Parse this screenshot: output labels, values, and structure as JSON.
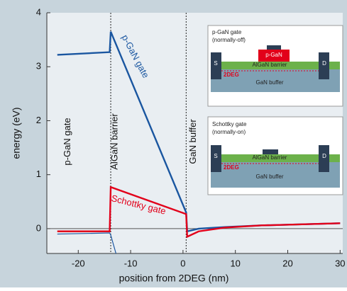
{
  "chart_data": {
    "type": "line",
    "xlabel": "position from 2DEG (nm)",
    "ylabel": "energy (eV)",
    "xlim": [
      -26,
      30.5
    ],
    "ylim": [
      -0.46,
      4
    ],
    "xticks": [
      -20,
      -10,
      0,
      10,
      20,
      30
    ],
    "yticks": [
      0,
      1,
      2,
      3,
      4
    ],
    "regions": [
      {
        "label": "p-GaN gate",
        "x": -22
      },
      {
        "label": "AlGaN barrier",
        "x": -13
      },
      {
        "label": "GaN buffer",
        "x": 2
      }
    ],
    "boundaries": [
      -13.8,
      0.6
    ],
    "series": [
      {
        "name": "p-GaN gate",
        "color": "#1a56a0",
        "x": [
          -24,
          -14,
          -13.8,
          0.6,
          0.8,
          3,
          8,
          15,
          30
        ],
        "values": [
          3.22,
          3.27,
          3.65,
          0.3,
          -0.05,
          0.0,
          0.03,
          0.06,
          0.1
        ]
      },
      {
        "name": "Schottky gate",
        "color": "#e2001a",
        "x": [
          -24,
          -14,
          -13.8,
          0.6,
          0.8,
          3,
          8,
          15,
          30
        ],
        "values": [
          -0.05,
          -0.05,
          0.77,
          0.27,
          -0.15,
          -0.05,
          0.02,
          0.06,
          0.1
        ]
      },
      {
        "color": "#1a56a0",
        "x": [
          -24,
          -14,
          -13.8,
          -12.8
        ],
        "values": [
          -0.1,
          -0.08,
          -0.12,
          -0.46
        ]
      }
    ]
  },
  "insets": [
    {
      "title": [
        "p-GaN gate",
        "(normally-off)"
      ],
      "gate": "p-GaN",
      "barrier": "AlGaN barrier",
      "channel": "2DEG",
      "buffer": "GaN buffer",
      "source": "S",
      "drain": "D"
    },
    {
      "title": [
        "Schottky gate",
        "(normally-on)"
      ],
      "barrier": "AlGaN barrier",
      "channel": "2DEG",
      "buffer": "GaN buffer",
      "source": "S",
      "drain": "D"
    }
  ]
}
